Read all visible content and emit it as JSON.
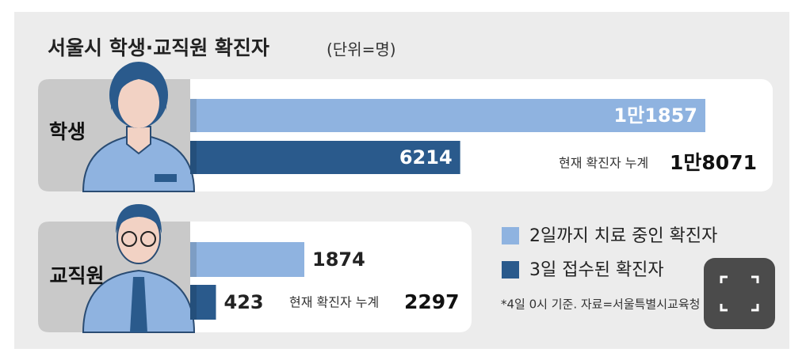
{
  "chart_data": {
    "type": "bar",
    "orientation": "horizontal",
    "title": "서울시 학생·교직원 확진자",
    "unit": "(단위=명)",
    "categories": [
      "학생",
      "교직원"
    ],
    "series": [
      {
        "name": "2일까지 치료 중인 확진자",
        "color": "#8fb3e0",
        "values": [
          11857,
          1874
        ],
        "value_labels": [
          "1만1857",
          "1874"
        ]
      },
      {
        "name": "3일 접수된 확진자",
        "color": "#2a5a8c",
        "values": [
          6214,
          423
        ]
      }
    ],
    "total_prefix": "현재 확진자 누계",
    "totals": [
      18071,
      2297
    ],
    "total_labels": [
      "1만8071",
      "2297"
    ],
    "note": "*4일 0시 기준. 자료=서울특별시교육청"
  }
}
